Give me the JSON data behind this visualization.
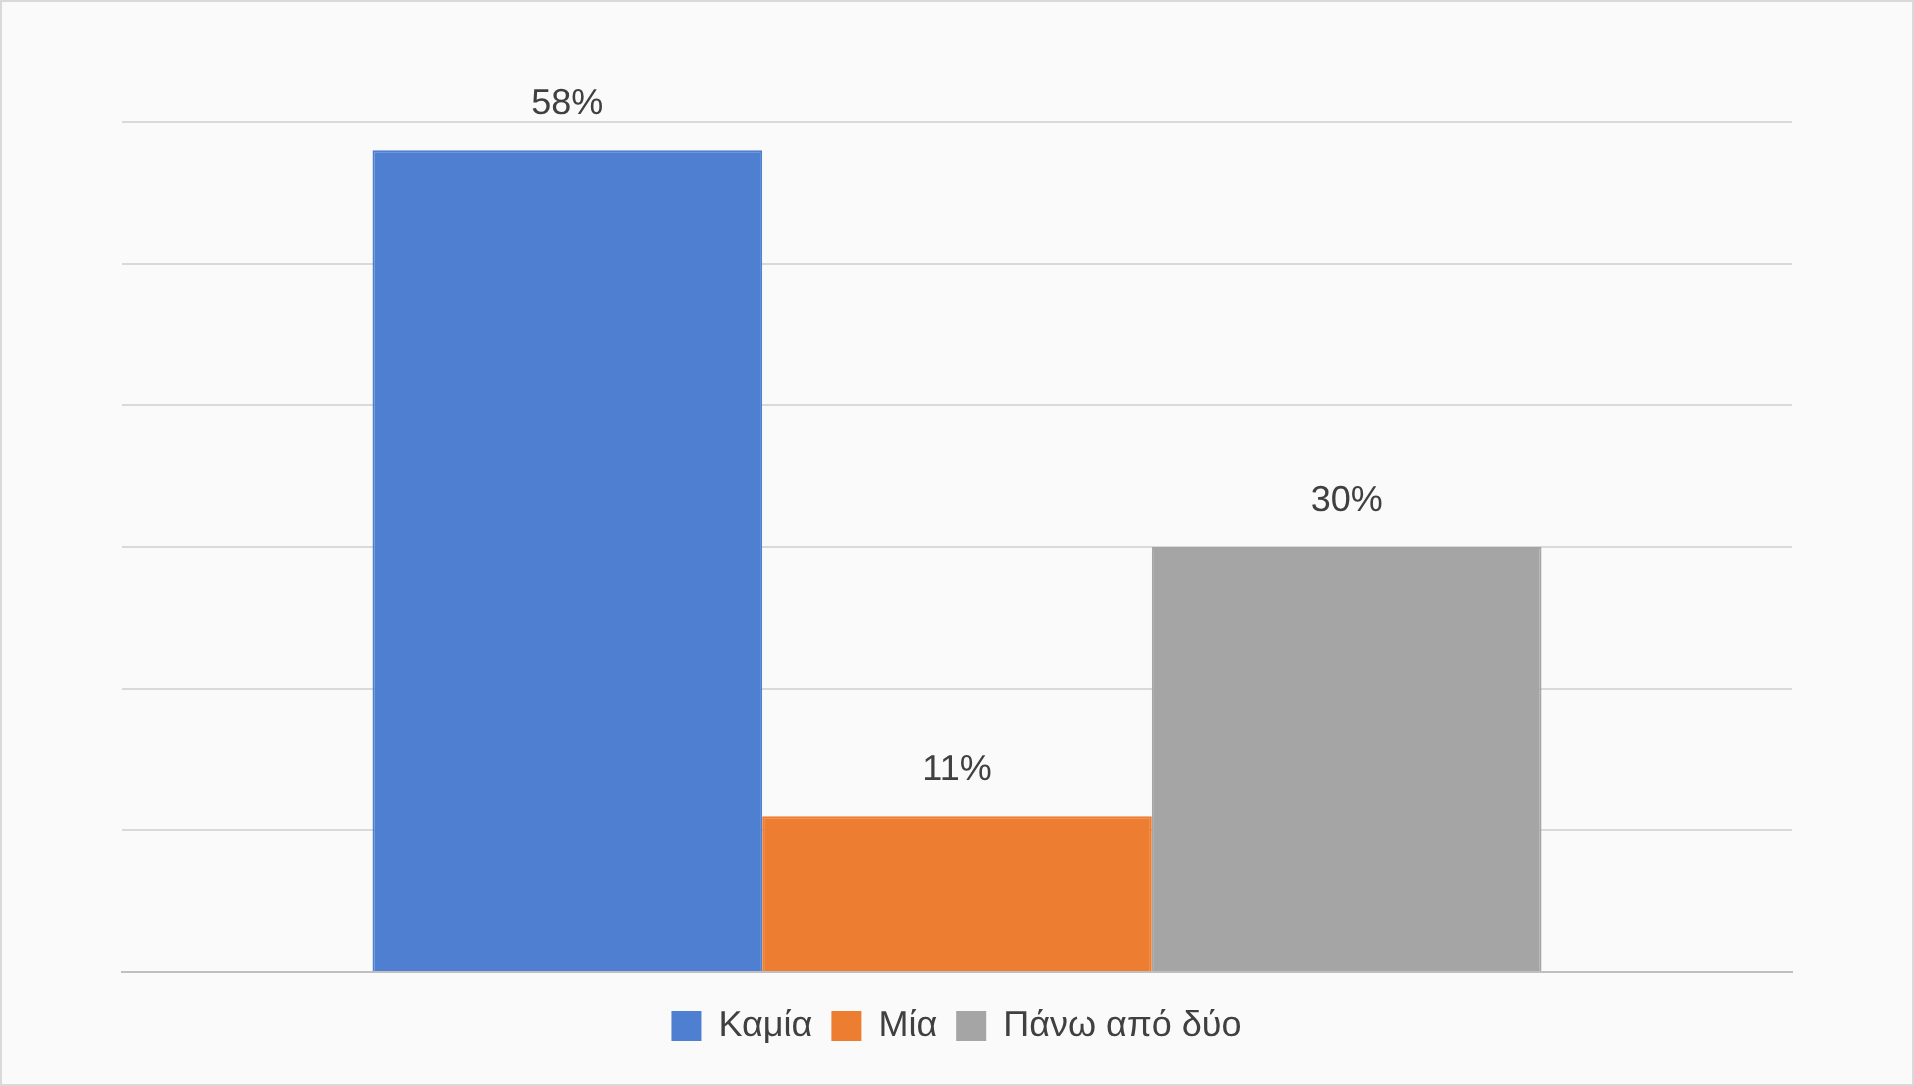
{
  "chart_data": {
    "type": "bar",
    "categories": [
      null
    ],
    "series": [
      {
        "name": "Καμία",
        "color": "#4f7fd0",
        "values": [
          58
        ],
        "value_labels": [
          "58%"
        ]
      },
      {
        "name": "Μία",
        "color": "#ed7d31",
        "values": [
          11
        ],
        "value_labels": [
          "11%"
        ]
      },
      {
        "name": "Πάνω από δύο",
        "color": "#a5a5a5",
        "values": [
          30
        ],
        "value_labels": [
          "30%"
        ]
      }
    ],
    "grid": "y",
    "legend": "bottom"
  }
}
